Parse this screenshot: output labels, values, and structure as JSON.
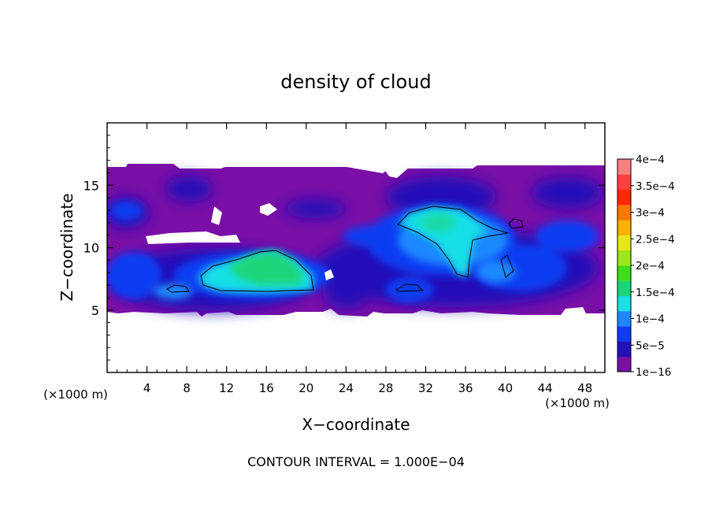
{
  "chart_data": {
    "type": "heatmap",
    "title": "density of cloud",
    "xlabel": "X−coordinate",
    "ylabel": "Z−coordinate",
    "x_unit_label": "(×1000 m)",
    "x_unit_label_right": "(×1000 m)",
    "xlim": [
      0,
      50
    ],
    "ylim": [
      0,
      20
    ],
    "x_ticks": [
      4,
      8,
      12,
      16,
      20,
      24,
      28,
      32,
      36,
      40,
      44,
      48
    ],
    "y_ticks": [
      5,
      10,
      15
    ],
    "colorbar": {
      "labels": [
        "1e−16",
        "5e−5",
        "1e−4",
        "1.5e−4",
        "2e−4",
        "2.5e−4",
        "3e−4",
        "3.5e−4",
        "4e−4"
      ],
      "levels": [
        1e-16,
        5e-05,
        0.0001,
        0.00015,
        0.0002,
        0.00025,
        0.0003,
        0.00035,
        0.0004
      ],
      "colors": [
        "#7a0fa6",
        "#2410b8",
        "#0f3cf2",
        "#1c88ff",
        "#18e0e6",
        "#1ad67a",
        "#3ddf1a",
        "#9ce619",
        "#e6e619",
        "#ffb000",
        "#ff7800",
        "#ff2a00",
        "#ff4040",
        "#ff8080"
      ]
    },
    "field": {
      "background_level": "1e−16",
      "cloud_layer_z": [
        5,
        16.5
      ],
      "cores": [
        {
          "x": 15.5,
          "z": 8.2,
          "peak": 0.00019
        },
        {
          "x": 32.5,
          "z": 11.5,
          "peak": 0.00015
        },
        {
          "x": 6.5,
          "z": 6.8,
          "peak": 0.0001
        },
        {
          "x": 30,
          "z": 6.7,
          "peak": 0.0001
        }
      ]
    },
    "footer": "CONTOUR INTERVAL = 1.000E−04"
  }
}
